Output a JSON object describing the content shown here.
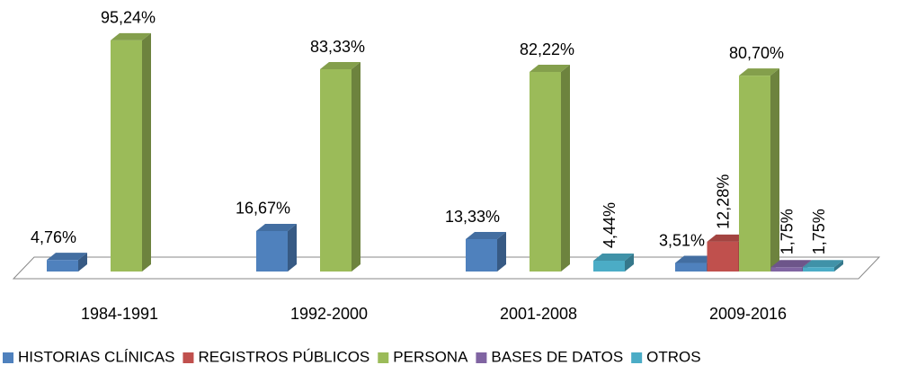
{
  "chart_data": {
    "type": "bar3d",
    "categories": [
      "1984-1991",
      "1992-2000",
      "2001-2008",
      "2009-2016"
    ],
    "ylim": [
      0,
      100
    ],
    "series": [
      {
        "name": "HISTORIAS CLÍNICAS",
        "color": "#4f81bd",
        "values": [
          4.76,
          16.67,
          13.33,
          3.51
        ],
        "value_labels": [
          "4,76%",
          "16,67%",
          "13,33%",
          "3,51%"
        ]
      },
      {
        "name": "REGISTROS PÚBLICOS",
        "color": "#c0504d",
        "values": [
          null,
          null,
          null,
          12.28
        ],
        "value_labels": [
          null,
          null,
          null,
          "12,28%"
        ]
      },
      {
        "name": "PERSONA",
        "color": "#9bbb59",
        "values": [
          95.24,
          83.33,
          82.22,
          80.7
        ],
        "value_labels": [
          "95,24%",
          "83,33%",
          "82,22%",
          "80,70%"
        ]
      },
      {
        "name": "BASES DE DATOS",
        "color": "#8064a2",
        "values": [
          null,
          null,
          null,
          1.75
        ],
        "value_labels": [
          null,
          null,
          null,
          "1,75%"
        ]
      },
      {
        "name": "OTROS",
        "color": "#4bacc6",
        "values": [
          null,
          null,
          4.44,
          1.75
        ],
        "value_labels": [
          null,
          null,
          "4,44%",
          "1,75%"
        ]
      }
    ]
  }
}
